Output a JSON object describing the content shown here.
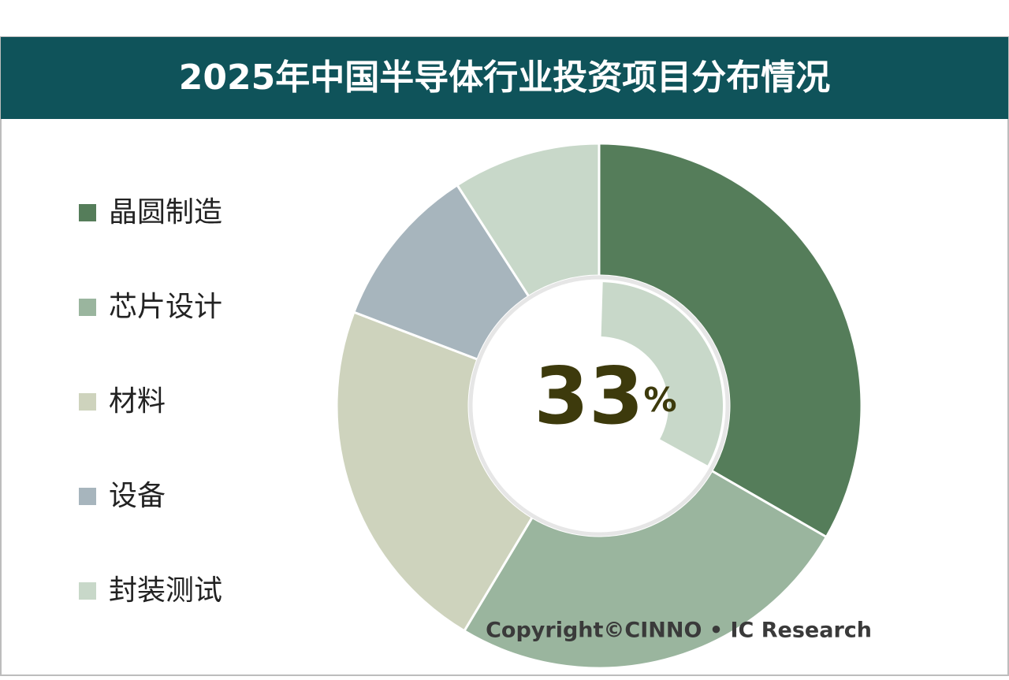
{
  "chart_data": {
    "type": "donut",
    "title": "2025年中国半导体行业投资项目分布情况",
    "categories": [
      "晶圆制造",
      "芯片设计",
      "材料",
      "设备",
      "封装测试"
    ],
    "values": [
      33,
      25,
      22,
      10,
      9
    ],
    "colors": [
      "#557d5a",
      "#9ab59e",
      "#ced3bd",
      "#a7b5bd",
      "#c8d8c9"
    ],
    "center_value": 33,
    "center_unit": "%",
    "source": "Copyright©CINNO • IC Research"
  }
}
